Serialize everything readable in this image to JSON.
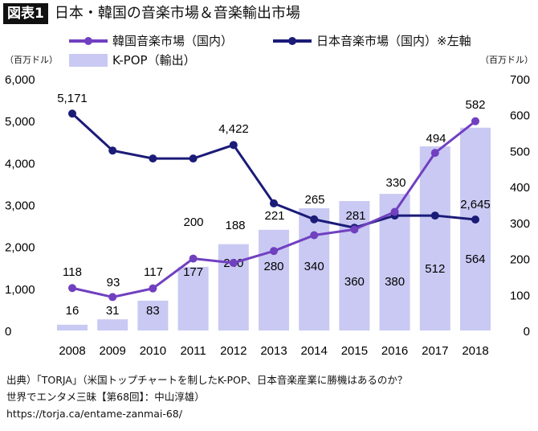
{
  "header": {
    "badge": "図表1",
    "title": "日本・韓国の音楽市場＆音楽輸出市場"
  },
  "legend": {
    "korea": "韓国音楽市場（国内）",
    "japan": "日本音楽市場（国内）※左軸",
    "kpop": "K-POP（輸出）",
    "placement": "top"
  },
  "colors": {
    "korea": "#7040c0",
    "japan": "#1b1b78",
    "kpop": "#c9c9f3"
  },
  "source": {
    "line1": "出典）「TORJA」（米国トップチャートを制したK-POP、日本音楽産業に勝機はあるのか？",
    "line2": "世界でエンタメ三昧【第68回】：中山淳雄）",
    "line3": "https://torja.ca/entame-zanmai-68/"
  },
  "chart_data": {
    "type": "bar+line",
    "categories": [
      "2008",
      "2009",
      "2010",
      "2011",
      "2012",
      "2013",
      "2014",
      "2015",
      "2016",
      "2017",
      "2018"
    ],
    "left_axis": {
      "label": "（百万ドル）",
      "range": [
        0,
        6000
      ],
      "ticks": [
        "0",
        "1,000",
        "2,000",
        "3,000",
        "4,000",
        "5,000",
        "6,000"
      ]
    },
    "right_axis": {
      "label": "（百万ドル）",
      "range": [
        0,
        700
      ],
      "ticks": [
        "0",
        "100",
        "200",
        "300",
        "400",
        "500",
        "600",
        "700"
      ]
    },
    "grid": false,
    "series": [
      {
        "name": "K-POP（輸出）",
        "type": "bar",
        "axis": "right",
        "values": [
          16,
          31,
          83,
          177,
          240,
          280,
          340,
          360,
          380,
          512,
          564
        ],
        "labels": [
          "16",
          "31",
          "83",
          "177",
          "240",
          "280",
          "340",
          "360",
          "380",
          "512",
          "564"
        ]
      },
      {
        "name": "韓国音楽市場（国内）",
        "type": "line",
        "axis": "right",
        "values": [
          118,
          93,
          117,
          200,
          188,
          221,
          265,
          281,
          330,
          494,
          582
        ],
        "labels": [
          "118",
          "93",
          "117",
          "200",
          "188",
          "221",
          "265",
          "281",
          "330",
          "494",
          "582"
        ]
      },
      {
        "name": "日本音楽市場（国内）",
        "type": "line",
        "axis": "left",
        "values": [
          5171,
          4290,
          4100,
          4100,
          4422,
          3030,
          2650,
          2450,
          2740,
          2740,
          2645
        ],
        "labels": [
          "5,171",
          "",
          "",
          "",
          "4,422",
          "",
          "",
          "",
          "",
          "",
          "2,645"
        ]
      }
    ]
  }
}
